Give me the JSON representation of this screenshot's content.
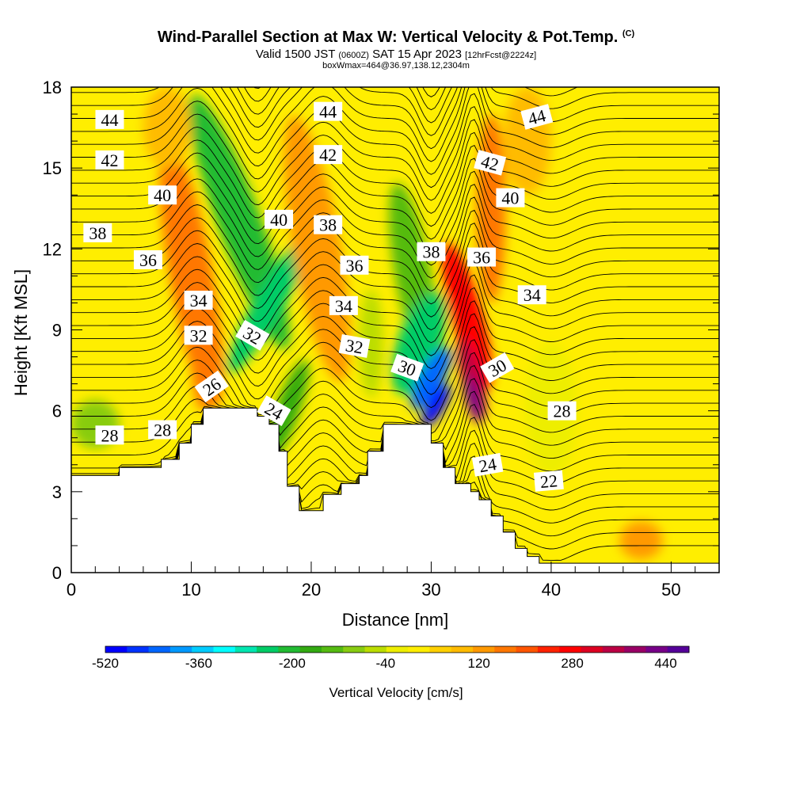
{
  "title": {
    "main": "Wind-Parallel Section at Max W: Vertical Velocity & Pot.Temp.",
    "main_tag": "(C)",
    "sub_a": "Valid 1500 JST",
    "sub_b": "(0600Z)",
    "sub_c": "SAT 15 Apr 2023",
    "sub_d": "[12hrFcst@2224z]",
    "box": "boxWmax=464@36.97,138.12,2304m"
  },
  "chart_data": {
    "type": "heatmap",
    "xlabel": "Distance [nm]",
    "ylabel": "Height [Kft MSL]",
    "xlim": [
      0,
      54
    ],
    "ylim": [
      0,
      18
    ],
    "x_ticks": [
      "0",
      "10",
      "20",
      "30",
      "40",
      "50"
    ],
    "y_ticks": [
      "0",
      "3",
      "6",
      "9",
      "12",
      "15",
      "18"
    ],
    "colorbar": {
      "label": "Vertical Velocity [cm/s]",
      "tick_labels": [
        "-520",
        "-360",
        "-200",
        "-40",
        "120",
        "280",
        "440"
      ],
      "range": [
        -520,
        480
      ],
      "colors": [
        "#0000ff",
        "#0033ff",
        "#0066ff",
        "#0099ff",
        "#00ccff",
        "#00ffff",
        "#00e6b0",
        "#00cc66",
        "#22bb33",
        "#33aa11",
        "#55bb11",
        "#88cc11",
        "#bbdd00",
        "#eeee00",
        "#ffee00",
        "#ffd000",
        "#ffbb00",
        "#ff9900",
        "#ff7700",
        "#ff5500",
        "#ff2200",
        "#ff0000",
        "#dd0022",
        "#bb0044",
        "#990066",
        "#770088",
        "#550099"
      ]
    },
    "terrain_kft": [
      [
        0,
        3.6
      ],
      [
        4,
        3.6
      ],
      [
        4,
        3.9
      ],
      [
        7.5,
        3.9
      ],
      [
        7.5,
        4.2
      ],
      [
        9,
        4.2
      ],
      [
        9,
        4.8
      ],
      [
        10,
        4.8
      ],
      [
        10,
        5.5
      ],
      [
        11,
        5.5
      ],
      [
        11,
        6.1
      ],
      [
        15.5,
        6.1
      ],
      [
        15.5,
        5.8
      ],
      [
        16.5,
        5.8
      ],
      [
        16.5,
        5.5
      ],
      [
        17.3,
        5.5
      ],
      [
        17.3,
        4.5
      ],
      [
        18,
        4.5
      ],
      [
        18,
        3.2
      ],
      [
        19,
        3.2
      ],
      [
        19,
        2.3
      ],
      [
        21,
        2.3
      ],
      [
        21,
        2.9
      ],
      [
        22.5,
        2.9
      ],
      [
        22.5,
        3.3
      ],
      [
        24,
        3.3
      ],
      [
        24,
        3.6
      ],
      [
        24.7,
        3.6
      ],
      [
        24.7,
        4.5
      ],
      [
        26,
        4.5
      ],
      [
        26,
        5.5
      ],
      [
        30,
        5.5
      ],
      [
        30,
        4.8
      ],
      [
        31,
        4.8
      ],
      [
        31,
        3.9
      ],
      [
        32,
        3.9
      ],
      [
        32,
        3.3
      ],
      [
        33.3,
        3.3
      ],
      [
        33.3,
        3.0
      ],
      [
        34,
        3.0
      ],
      [
        34,
        2.7
      ],
      [
        35,
        2.7
      ],
      [
        35,
        2.1
      ],
      [
        36,
        2.1
      ],
      [
        36,
        1.5
      ],
      [
        37,
        1.5
      ],
      [
        37,
        0.9
      ],
      [
        38,
        0.9
      ],
      [
        38,
        0.6
      ],
      [
        39,
        0.6
      ],
      [
        39,
        0.35
      ],
      [
        54,
        0.35
      ]
    ],
    "contour_labels": [
      {
        "v": "44",
        "x": 3.2,
        "y": 16.8,
        "rot": 0
      },
      {
        "v": "42",
        "x": 3.2,
        "y": 15.3,
        "rot": 0
      },
      {
        "v": "40",
        "x": 7.6,
        "y": 14.0,
        "rot": 0
      },
      {
        "v": "38",
        "x": 2.2,
        "y": 12.6,
        "rot": 0
      },
      {
        "v": "36",
        "x": 6.4,
        "y": 11.6,
        "rot": 0
      },
      {
        "v": "34",
        "x": 10.6,
        "y": 10.1,
        "rot": 0
      },
      {
        "v": "32",
        "x": 10.6,
        "y": 8.8,
        "rot": 0
      },
      {
        "v": "26",
        "x": 11.7,
        "y": 6.9,
        "rot": -35
      },
      {
        "v": "28",
        "x": 3.2,
        "y": 5.1,
        "rot": 0
      },
      {
        "v": "28",
        "x": 7.6,
        "y": 5.3,
        "rot": 0
      },
      {
        "v": "32",
        "x": 15.1,
        "y": 8.8,
        "rot": 30
      },
      {
        "v": "40",
        "x": 17.3,
        "y": 13.1,
        "rot": 0
      },
      {
        "v": "24",
        "x": 16.9,
        "y": 6.0,
        "rot": 30
      },
      {
        "v": "44",
        "x": 21.4,
        "y": 17.1,
        "rot": 0
      },
      {
        "v": "42",
        "x": 21.4,
        "y": 15.5,
        "rot": 0
      },
      {
        "v": "38",
        "x": 21.4,
        "y": 12.9,
        "rot": 0
      },
      {
        "v": "36",
        "x": 23.6,
        "y": 11.4,
        "rot": 0
      },
      {
        "v": "34",
        "x": 22.7,
        "y": 9.9,
        "rot": 0
      },
      {
        "v": "32",
        "x": 23.6,
        "y": 8.4,
        "rot": 10
      },
      {
        "v": "30",
        "x": 28.0,
        "y": 7.6,
        "rot": 20
      },
      {
        "v": "38",
        "x": 30.0,
        "y": 11.9,
        "rot": 0
      },
      {
        "v": "44",
        "x": 38.8,
        "y": 16.9,
        "rot": -15
      },
      {
        "v": "42",
        "x": 34.9,
        "y": 15.2,
        "rot": 15
      },
      {
        "v": "40",
        "x": 36.6,
        "y": 13.9,
        "rot": 0
      },
      {
        "v": "36",
        "x": 34.2,
        "y": 11.7,
        "rot": 0
      },
      {
        "v": "34",
        "x": 38.4,
        "y": 10.3,
        "rot": 0
      },
      {
        "v": "30",
        "x": 35.5,
        "y": 7.6,
        "rot": -30
      },
      {
        "v": "28",
        "x": 40.9,
        "y": 6.0,
        "rot": 0
      },
      {
        "v": "24",
        "x": 34.7,
        "y": 4.0,
        "rot": -10
      },
      {
        "v": "22",
        "x": 39.8,
        "y": 3.4,
        "rot": -5
      }
    ]
  }
}
